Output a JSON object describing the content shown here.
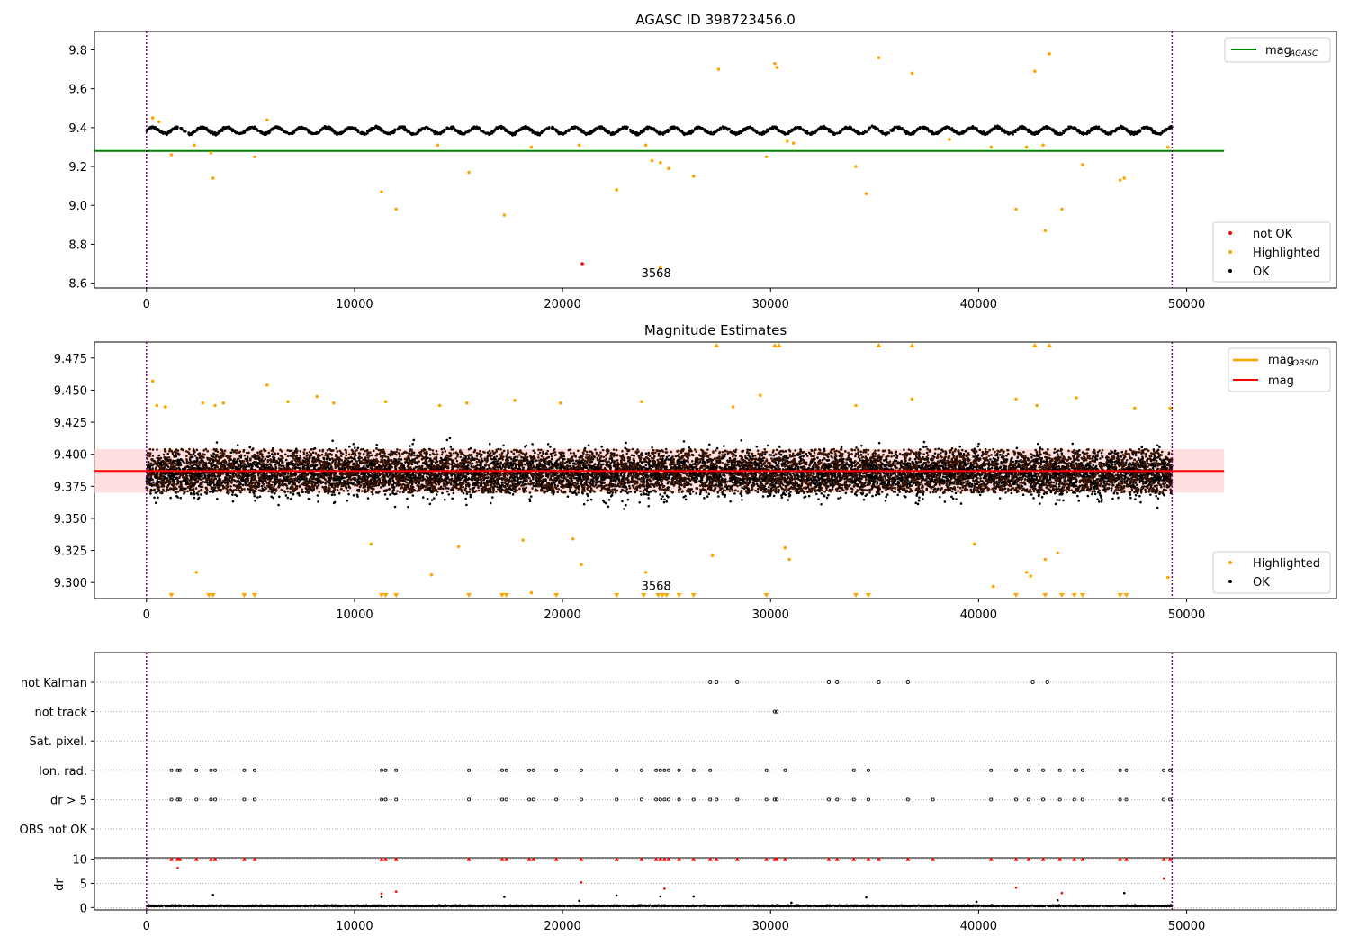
{
  "figure_title": "AGASC ID 398723456.0",
  "colors": {
    "ok": "#000000",
    "highlighted": "#ffa500",
    "not_ok": "#ff0000",
    "mag_agasc_line": "#008000",
    "mag_line": "#ff0000",
    "mag_band": "#ffcccc",
    "mag_obsid": "#ffa500",
    "obsid_boundary": "#800080",
    "grid": "#b0b0b0"
  },
  "chart_data": [
    {
      "type": "scatter",
      "title": "AGASC ID 398723456.0",
      "xlabel": "",
      "ylabel": "",
      "xlim": [
        -2500,
        57200
      ],
      "ylim": [
        8.575,
        9.895
      ],
      "xticks": [
        0,
        10000,
        20000,
        30000,
        40000,
        50000
      ],
      "yticks": [
        8.6,
        8.8,
        9.0,
        9.2,
        9.4,
        9.6,
        9.8
      ],
      "ytick_decimals": 1,
      "obsid_boundaries": [
        0,
        49300
      ],
      "obsid_labels": [
        {
          "x": 24500,
          "y": 8.63,
          "text": "3568"
        }
      ],
      "ok_band": {
        "x_range": [
          0,
          49300
        ],
        "center": 9.385,
        "half_width": 0.025,
        "jitter": 0.018
      },
      "lines": [
        {
          "name": "mag_AGASC",
          "name_sub": "AGASC",
          "name_main": "mag",
          "y": 9.28,
          "x_range": [
            -2500,
            51800
          ],
          "color": "#008000"
        }
      ],
      "series": [
        {
          "name": "not OK",
          "color": "#ff0000",
          "points": [
            [
              20950,
              8.7
            ]
          ]
        },
        {
          "name": "Highlighted",
          "color": "#ffa500",
          "points": [
            [
              300,
              9.45
            ],
            [
              600,
              9.43
            ],
            [
              1200,
              9.26
            ],
            [
              2300,
              9.31
            ],
            [
              3100,
              9.27
            ],
            [
              3200,
              9.14
            ],
            [
              5200,
              9.25
            ],
            [
              5800,
              9.44
            ],
            [
              11300,
              9.07
            ],
            [
              12000,
              8.98
            ],
            [
              14000,
              9.31
            ],
            [
              15500,
              9.17
            ],
            [
              17200,
              8.95
            ],
            [
              18500,
              9.3
            ],
            [
              20800,
              9.31
            ],
            [
              22600,
              9.08
            ],
            [
              24000,
              9.31
            ],
            [
              24300,
              9.23
            ],
            [
              24700,
              9.22
            ],
            [
              25100,
              9.19
            ],
            [
              26300,
              9.15
            ],
            [
              27500,
              9.7
            ],
            [
              29800,
              9.25
            ],
            [
              30200,
              9.73
            ],
            [
              30300,
              9.71
            ],
            [
              30800,
              9.33
            ],
            [
              31100,
              9.32
            ],
            [
              34100,
              9.2
            ],
            [
              34600,
              9.06
            ],
            [
              35200,
              9.76
            ],
            [
              36800,
              9.68
            ],
            [
              38600,
              9.34
            ],
            [
              40600,
              9.3
            ],
            [
              41800,
              8.98
            ],
            [
              42300,
              9.3
            ],
            [
              42700,
              9.69
            ],
            [
              43100,
              9.31
            ],
            [
              43200,
              8.87
            ],
            [
              43400,
              9.78
            ],
            [
              44000,
              8.98
            ],
            [
              45000,
              9.21
            ],
            [
              46800,
              9.13
            ],
            [
              47000,
              9.14
            ],
            [
              49100,
              9.3
            ],
            [
              24700,
              8.68
            ]
          ]
        },
        {
          "name": "OK",
          "color": "#000000",
          "points": []
        }
      ],
      "legends": [
        {
          "position": "upper-right",
          "entries": [
            {
              "kind": "line",
              "series": "mag_AGASC"
            }
          ]
        },
        {
          "position": "lower-right",
          "entries": [
            {
              "kind": "marker",
              "series": "not OK"
            },
            {
              "kind": "marker",
              "series": "Highlighted"
            },
            {
              "kind": "marker",
              "series": "OK"
            }
          ]
        }
      ]
    },
    {
      "type": "scatter",
      "title": "Magnitude Estimates",
      "xlabel": "",
      "ylabel": "",
      "xlim": [
        -2500,
        57200
      ],
      "ylim": [
        9.2875,
        9.4875
      ],
      "xticks": [
        0,
        10000,
        20000,
        30000,
        40000,
        50000
      ],
      "yticks": [
        9.3,
        9.325,
        9.35,
        9.375,
        9.4,
        9.425,
        9.45,
        9.475
      ],
      "ytick_decimals": 3,
      "obsid_boundaries": [
        0,
        49300
      ],
      "obsid_labels": [
        {
          "x": 24500,
          "y": 9.294,
          "text": "3568"
        }
      ],
      "band": {
        "name": "mag range",
        "y_low": 9.37,
        "y_high": 9.404,
        "x_range": [
          -2500,
          51800
        ],
        "color": "#ffcccc"
      },
      "ok_cloud": {
        "x_range": [
          0,
          49300
        ],
        "center": 9.385,
        "spread": 0.032
      },
      "lines": [
        {
          "name": "mag",
          "name_main": "mag",
          "y": 9.387,
          "x_range": [
            -2500,
            51800
          ],
          "color": "#ff0000"
        }
      ],
      "legend_only_lines": [
        {
          "name": "mag_OBSID",
          "name_main": "mag",
          "name_sub": "OBSID",
          "color": "#ffa500"
        }
      ],
      "series": [
        {
          "name": "Highlighted",
          "color": "#ffa500",
          "points": [
            [
              300,
              9.457
            ],
            [
              500,
              9.438
            ],
            [
              900,
              9.437
            ],
            [
              2400,
              9.308
            ],
            [
              2700,
              9.44
            ],
            [
              3300,
              9.438
            ],
            [
              3700,
              9.44
            ],
            [
              5800,
              9.454
            ],
            [
              6800,
              9.441
            ],
            [
              8200,
              9.445
            ],
            [
              9000,
              9.44
            ],
            [
              10800,
              9.33
            ],
            [
              11500,
              9.441
            ],
            [
              13700,
              9.306
            ],
            [
              14100,
              9.438
            ],
            [
              15000,
              9.328
            ],
            [
              15400,
              9.44
            ],
            [
              17700,
              9.442
            ],
            [
              18100,
              9.333
            ],
            [
              18500,
              9.292
            ],
            [
              19900,
              9.44
            ],
            [
              20500,
              9.334
            ],
            [
              20900,
              9.314
            ],
            [
              23800,
              9.441
            ],
            [
              24000,
              9.308
            ],
            [
              27200,
              9.321
            ],
            [
              28200,
              9.437
            ],
            [
              29500,
              9.446
            ],
            [
              30700,
              9.327
            ],
            [
              30900,
              9.318
            ],
            [
              34100,
              9.438
            ],
            [
              36800,
              9.443
            ],
            [
              39800,
              9.33
            ],
            [
              40700,
              9.297
            ],
            [
              41800,
              9.443
            ],
            [
              42300,
              9.308
            ],
            [
              42500,
              9.305
            ],
            [
              42800,
              9.438
            ],
            [
              43200,
              9.318
            ],
            [
              43800,
              9.323
            ],
            [
              44700,
              9.444
            ],
            [
              47500,
              9.436
            ],
            [
              49100,
              9.304
            ],
            [
              49200,
              9.436
            ]
          ]
        },
        {
          "name": "OK",
          "color": "#000000",
          "points": []
        }
      ],
      "out_of_range_high": [
        27400,
        30200,
        30400,
        35200,
        36800,
        42700,
        43400
      ],
      "out_of_range_low": [
        1200,
        3000,
        3200,
        4700,
        5200,
        11300,
        11500,
        12000,
        15500,
        17100,
        17300,
        19700,
        22600,
        23900,
        24600,
        24800,
        25000,
        25600,
        26300,
        29800,
        34100,
        34700,
        41800,
        43200,
        44000,
        44600,
        45000,
        46800,
        47100
      ],
      "legends": [
        {
          "position": "upper-right",
          "entries": [
            {
              "kind": "line",
              "series": "mag_OBSID"
            },
            {
              "kind": "line",
              "series": "mag"
            }
          ]
        },
        {
          "position": "lower-right",
          "entries": [
            {
              "kind": "marker",
              "series": "Highlighted"
            },
            {
              "kind": "marker",
              "series": "OK"
            }
          ]
        }
      ]
    },
    {
      "type": "scatter",
      "title": "",
      "xlabel": "",
      "ylabel": "",
      "xlim": [
        -2500,
        57200
      ],
      "categories": [
        "not Kalman",
        "not track",
        "Sat. pixel.",
        "Ion. rad.",
        "dr > 5",
        "OBS not OK"
      ],
      "obsid_boundaries": [
        0,
        49300
      ],
      "flags": {
        "not Kalman": [
          27100,
          27400,
          28400,
          32800,
          33200,
          35200,
          36600,
          42600,
          43300
        ],
        "not track": [
          30200,
          30300
        ],
        "Sat. pixel.": [],
        "Ion. rad.": [
          1200,
          1500,
          1600,
          2400,
          3100,
          3300,
          4700,
          5200,
          11300,
          11500,
          12000,
          15500,
          17100,
          17300,
          18400,
          18600,
          19700,
          20900,
          22600,
          23800,
          24500,
          24700,
          24900,
          25100,
          25600,
          26300,
          27100,
          29800,
          30700,
          34000,
          34700,
          40600,
          41800,
          42400,
          43100,
          43900,
          44600,
          45000,
          46800,
          47100,
          48900,
          49200
        ],
        "dr > 5": [
          1200,
          1500,
          1600,
          2400,
          3100,
          3300,
          4700,
          5200,
          11300,
          11500,
          12000,
          15500,
          17100,
          17300,
          18400,
          18600,
          19700,
          20900,
          22600,
          23800,
          24500,
          24700,
          24900,
          25100,
          25600,
          26300,
          27100,
          27400,
          28400,
          29800,
          30200,
          30300,
          32800,
          33200,
          34000,
          34700,
          36600,
          37800,
          40600,
          41800,
          42400,
          43100,
          43900,
          44600,
          45000,
          46800,
          47100,
          48900,
          49200
        ],
        "OBS not OK": []
      }
    },
    {
      "type": "scatter",
      "title": "",
      "xlabel": "",
      "ylabel": "dr",
      "xlim": [
        -2500,
        57200
      ],
      "ylim": [
        -0.5,
        10.3
      ],
      "xticks": [
        0,
        10000,
        20000,
        30000,
        40000,
        50000
      ],
      "yticks": [
        0,
        5,
        10
      ],
      "ytick_decimals": 0,
      "obsid_boundaries": [
        0,
        49300
      ],
      "ok_band": {
        "x_range": [
          0,
          49300
        ],
        "center": 0.25,
        "jitter": 0.35
      },
      "series": [
        {
          "name": "dr (OK)",
          "color": "#000000",
          "points": [
            [
              3200,
              2.6
            ],
            [
              11300,
              2.2
            ],
            [
              17200,
              2.2
            ],
            [
              22600,
              2.5
            ],
            [
              24700,
              2.3
            ],
            [
              26300,
              2.3
            ],
            [
              34600,
              2.1
            ],
            [
              39900,
              1.2
            ],
            [
              47000,
              3.0
            ],
            [
              20800,
              1.4
            ],
            [
              31000,
              1.0
            ],
            [
              43800,
              1.5
            ]
          ]
        },
        {
          "name": "dr (not OK)",
          "color": "#ff0000",
          "points": [
            [
              1500,
              8.2
            ],
            [
              11300,
              2.9
            ],
            [
              12000,
              3.3
            ],
            [
              20900,
              5.2
            ],
            [
              24900,
              3.9
            ],
            [
              41800,
              4.1
            ],
            [
              44000,
              3.0
            ],
            [
              48900,
              6.0
            ]
          ]
        },
        {
          "name": "dr capped",
          "color": "#ff0000",
          "points": [
            [
              1200,
              10
            ],
            [
              1500,
              10
            ],
            [
              1600,
              10
            ],
            [
              2400,
              10
            ],
            [
              3100,
              10
            ],
            [
              3300,
              10
            ],
            [
              4700,
              10
            ],
            [
              5200,
              10
            ],
            [
              11300,
              10
            ],
            [
              11500,
              10
            ],
            [
              12000,
              10
            ],
            [
              15500,
              10
            ],
            [
              17100,
              10
            ],
            [
              17300,
              10
            ],
            [
              18400,
              10
            ],
            [
              18600,
              10
            ],
            [
              19700,
              10
            ],
            [
              20900,
              10
            ],
            [
              22600,
              10
            ],
            [
              23800,
              10
            ],
            [
              24500,
              10
            ],
            [
              24700,
              10
            ],
            [
              24900,
              10
            ],
            [
              25100,
              10
            ],
            [
              25600,
              10
            ],
            [
              26300,
              10
            ],
            [
              27100,
              10
            ],
            [
              27400,
              10
            ],
            [
              28400,
              10
            ],
            [
              29800,
              10
            ],
            [
              30200,
              10
            ],
            [
              30300,
              10
            ],
            [
              30700,
              10
            ],
            [
              32800,
              10
            ],
            [
              33200,
              10
            ],
            [
              34000,
              10
            ],
            [
              34700,
              10
            ],
            [
              35200,
              10
            ],
            [
              36600,
              10
            ],
            [
              37800,
              10
            ],
            [
              40600,
              10
            ],
            [
              41800,
              10
            ],
            [
              42400,
              10
            ],
            [
              43100,
              10
            ],
            [
              43900,
              10
            ],
            [
              44600,
              10
            ],
            [
              45000,
              10
            ],
            [
              46800,
              10
            ],
            [
              47100,
              10
            ],
            [
              48900,
              10
            ],
            [
              49200,
              10
            ]
          ]
        }
      ]
    }
  ]
}
